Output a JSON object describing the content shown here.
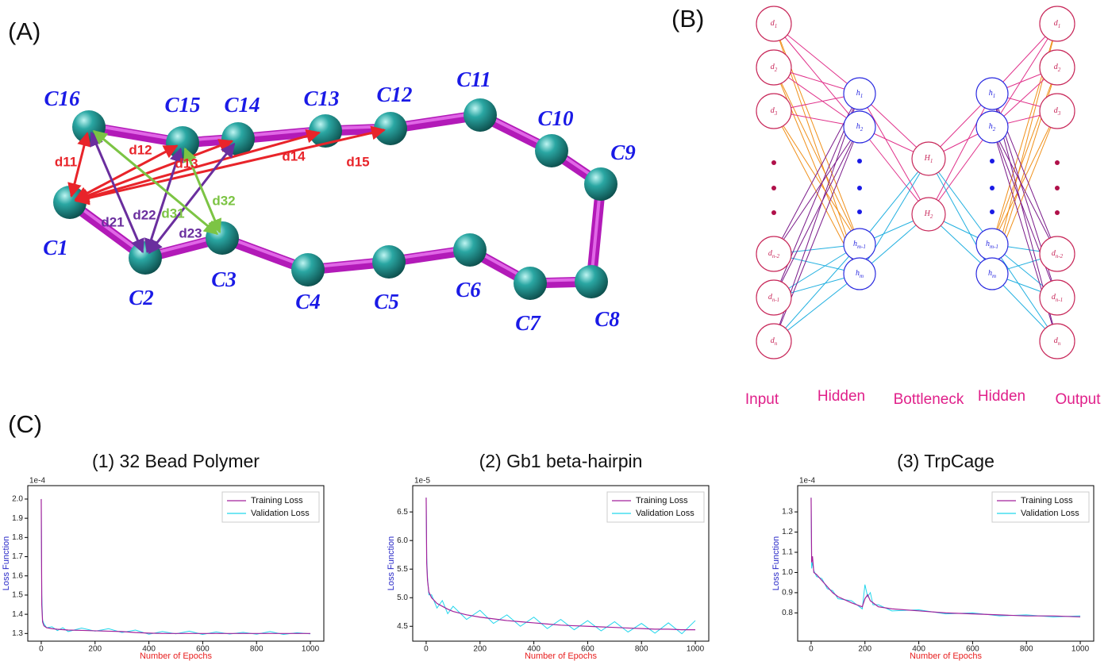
{
  "panel_labels": [
    "(A)",
    "(B)",
    "(C)"
  ],
  "panel_a": {
    "beads": [
      "C1",
      "C2",
      "C3",
      "C4",
      "C5",
      "C6",
      "C7",
      "C8",
      "C9",
      "C10",
      "C11",
      "C12",
      "C13",
      "C14",
      "C15",
      "C16"
    ],
    "distances": [
      "d11",
      "d12",
      "d13",
      "d14",
      "d15",
      "d21",
      "d22",
      "d23",
      "d31",
      "d32"
    ]
  },
  "panel_b": {
    "input": [
      {
        "base": "d",
        "sub": "1"
      },
      {
        "base": "d",
        "sub": "2"
      },
      {
        "base": "d",
        "sub": "3"
      },
      {
        "base": "d",
        "sub": "n-2"
      },
      {
        "base": "d",
        "sub": "n-1"
      },
      {
        "base": "d",
        "sub": "n"
      }
    ],
    "hidden_in": [
      {
        "base": "h",
        "sub": "1"
      },
      {
        "base": "h",
        "sub": "2"
      },
      {
        "base": "h",
        "sub": "m-1"
      },
      {
        "base": "h",
        "sub": "m"
      }
    ],
    "bottleneck": [
      {
        "base": "H",
        "sub": "1"
      },
      {
        "base": "H",
        "sub": "2"
      }
    ],
    "hidden_out": [
      {
        "base": "h",
        "sub": "1"
      },
      {
        "base": "h",
        "sub": "2"
      },
      {
        "base": "h",
        "sub": "m-1"
      },
      {
        "base": "h",
        "sub": "m"
      }
    ],
    "output": [
      {
        "base": "d",
        "sub": "1"
      },
      {
        "base": "d",
        "sub": "2"
      },
      {
        "base": "d",
        "sub": "3"
      },
      {
        "base": "d",
        "sub": "n-2"
      },
      {
        "base": "d",
        "sub": "n-1"
      },
      {
        "base": "d",
        "sub": "n"
      }
    ],
    "layer_labels": [
      "Input",
      "Hidden",
      "Bottleneck",
      "Hidden",
      "Output"
    ]
  },
  "chart_data": [
    {
      "type": "line",
      "title": "(1) 32 Bead Polymer",
      "offset_label": "1e-4",
      "x_label": "Number of Epochs",
      "y_label": "Loss Function",
      "x": [
        0,
        2,
        5,
        10,
        20,
        40,
        60,
        80,
        100,
        150,
        200,
        250,
        300,
        350,
        400,
        450,
        500,
        550,
        600,
        650,
        700,
        750,
        800,
        850,
        900,
        950,
        1000
      ],
      "series": [
        {
          "name": "Training Loss",
          "color": "#a3229c",
          "values": [
            2.0,
            1.45,
            1.36,
            1.34,
            1.33,
            1.325,
            1.322,
            1.32,
            1.318,
            1.316,
            1.314,
            1.312,
            1.31,
            1.305,
            1.302,
            1.3,
            1.3,
            1.3,
            1.3,
            1.3,
            1.3,
            1.3,
            1.3,
            1.3,
            1.3,
            1.3,
            1.3
          ]
        },
        {
          "name": "Validation Loss",
          "color": "#22d6ec",
          "values": [
            2.0,
            1.5,
            1.37,
            1.35,
            1.33,
            1.335,
            1.315,
            1.33,
            1.31,
            1.328,
            1.312,
            1.325,
            1.305,
            1.318,
            1.296,
            1.31,
            1.298,
            1.312,
            1.295,
            1.308,
            1.297,
            1.306,
            1.296,
            1.31,
            1.295,
            1.304,
            1.298
          ]
        }
      ],
      "xlim": [
        -50,
        1050
      ],
      "xticks": [
        0,
        200,
        400,
        600,
        800,
        1000
      ],
      "ylim": [
        1.26,
        2.07
      ],
      "yticks": [
        1.3,
        1.4,
        1.5,
        1.6,
        1.7,
        1.8,
        1.9,
        {
          "value": 2,
          "label": "2.0"
        }
      ],
      "legend": "upper right"
    },
    {
      "type": "line",
      "title": "(2) Gb1 beta-hairpin",
      "offset_label": "1e-5",
      "x_label": "Number of Epochs",
      "y_label": "Loss Function",
      "x": [
        0,
        2,
        5,
        10,
        20,
        40,
        60,
        80,
        100,
        150,
        200,
        250,
        300,
        350,
        400,
        450,
        500,
        550,
        600,
        650,
        700,
        750,
        800,
        850,
        900,
        950,
        1000
      ],
      "series": [
        {
          "name": "Training Loss",
          "color": "#a3229c",
          "values": [
            6.75,
            5.6,
            5.3,
            5.1,
            5.0,
            4.9,
            4.85,
            4.8,
            4.76,
            4.7,
            4.66,
            4.63,
            4.6,
            4.58,
            4.56,
            4.54,
            4.52,
            4.51,
            4.5,
            4.49,
            4.48,
            4.47,
            4.46,
            4.45,
            4.45,
            4.44,
            4.44
          ]
        },
        {
          "name": "Validation Loss",
          "color": "#22d6ec",
          "values": [
            6.75,
            5.7,
            5.35,
            5.05,
            5.05,
            4.82,
            4.95,
            4.72,
            4.85,
            4.62,
            4.78,
            4.55,
            4.7,
            4.5,
            4.66,
            4.46,
            4.62,
            4.44,
            4.6,
            4.42,
            4.58,
            4.4,
            4.55,
            4.38,
            4.56,
            4.37,
            4.6
          ]
        }
      ],
      "xlim": [
        -50,
        1050
      ],
      "xticks": [
        0,
        200,
        400,
        600,
        800,
        1000
      ],
      "ylim": [
        4.24,
        6.96
      ],
      "yticks": [
        4.5,
        {
          "value": 5,
          "label": "5.0"
        },
        5.5,
        {
          "value": 6,
          "label": "6.0"
        },
        6.5
      ],
      "legend": "upper right"
    },
    {
      "type": "line",
      "title": "(3) TrpCage",
      "offset_label": "1e-4",
      "x_label": "Number of Epochs",
      "y_label": "Loss Function",
      "x": [
        0,
        2,
        5,
        10,
        20,
        40,
        60,
        80,
        100,
        150,
        190,
        200,
        210,
        220,
        230,
        250,
        300,
        400,
        500,
        600,
        700,
        800,
        900,
        1000
      ],
      "series": [
        {
          "name": "Training Loss",
          "color": "#a3229c",
          "values": [
            1.37,
            1.05,
            1.08,
            1.0,
            0.99,
            0.96,
            0.93,
            0.9,
            0.88,
            0.85,
            0.83,
            0.87,
            0.89,
            0.86,
            0.85,
            0.83,
            0.82,
            0.81,
            0.8,
            0.795,
            0.79,
            0.785,
            0.785,
            0.78
          ]
        },
        {
          "name": "Validation Loss",
          "color": "#22d6ec",
          "values": [
            1.37,
            1.02,
            1.05,
            1.01,
            0.98,
            0.97,
            0.92,
            0.91,
            0.87,
            0.86,
            0.82,
            0.94,
            0.88,
            0.9,
            0.84,
            0.84,
            0.81,
            0.815,
            0.795,
            0.8,
            0.785,
            0.79,
            0.78,
            0.785
          ]
        }
      ],
      "xlim": [
        -50,
        1050
      ],
      "xticks": [
        0,
        200,
        400,
        600,
        800,
        1000
      ],
      "ylim": [
        0.66,
        1.43
      ],
      "yticks": [
        0.8,
        0.9,
        {
          "value": 1,
          "label": "1.0"
        },
        1.1,
        1.2,
        1.3
      ],
      "legend": "upper right"
    }
  ]
}
